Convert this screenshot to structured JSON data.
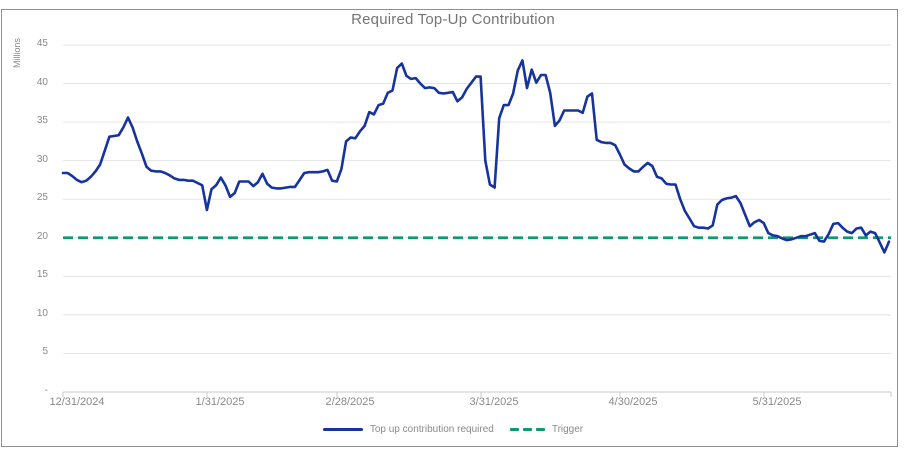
{
  "title": "Required Top-Up Contribution",
  "y_axis": {
    "label": "Millions",
    "ticks": [
      "45",
      "40",
      "35",
      "30",
      "25",
      "20",
      "15",
      "10",
      "5",
      "-"
    ]
  },
  "x_axis": {
    "ticks": [
      "12/31/2024",
      "1/31/2025",
      "2/28/2025",
      "3/31/2025",
      "4/30/2025",
      "5/31/2025"
    ]
  },
  "legend": {
    "items": [
      {
        "label": "Top up contribution required"
      },
      {
        "label": "Trigger"
      }
    ]
  },
  "colors": {
    "series_blue": "#16339E",
    "trigger_green": "#0B9B72",
    "grid": "#E5E5E5",
    "axis": "#C9C9C9",
    "tick_text": "#8A8A8A",
    "title_text": "#757575"
  },
  "chart_data": {
    "type": "line",
    "title": "Required Top-Up Contribution",
    "xlabel": "",
    "ylabel": "Millions",
    "ylim": [
      0,
      45
    ],
    "y_tick_step": 5,
    "grid": true,
    "legend_position": "bottom",
    "x_tick_labels": [
      "12/31/2024",
      "1/31/2025",
      "2/28/2025",
      "3/31/2025",
      "4/30/2025",
      "5/31/2025"
    ],
    "x_unit": "daily points from 12/31/2024",
    "series": [
      {
        "name": "Top up contribution required",
        "color": "#16339E",
        "style": "solid",
        "values": [
          28.4,
          28.4,
          28.0,
          27.5,
          27.2,
          27.4,
          27.9,
          28.6,
          29.5,
          31.3,
          33.1,
          33.2,
          33.3,
          34.3,
          35.6,
          34.3,
          32.5,
          30.9,
          29.2,
          28.7,
          28.6,
          28.6,
          28.4,
          28.1,
          27.7,
          27.5,
          27.5,
          27.4,
          27.4,
          27.1,
          26.8,
          23.6,
          26.3,
          26.8,
          27.8,
          26.8,
          25.3,
          25.8,
          27.3,
          27.3,
          27.3,
          26.7,
          27.2,
          28.3,
          27.0,
          26.5,
          26.4,
          26.4,
          26.5,
          26.6,
          26.6,
          27.5,
          28.4,
          28.5,
          28.5,
          28.5,
          28.6,
          28.8,
          27.4,
          27.3,
          28.9,
          32.5,
          33.0,
          32.9,
          33.8,
          34.5,
          36.3,
          36.0,
          37.2,
          37.4,
          38.8,
          39.1,
          42.0,
          42.6,
          41.0,
          40.6,
          40.7,
          40.0,
          39.4,
          39.5,
          39.4,
          38.8,
          38.7,
          38.8,
          38.9,
          37.7,
          38.2,
          39.3,
          40.1,
          40.9,
          40.9,
          30.0,
          26.9,
          26.5,
          35.5,
          37.2,
          37.2,
          38.7,
          41.7,
          43.0,
          39.4,
          41.8,
          40.1,
          41.1,
          41.1,
          38.8,
          34.5,
          35.2,
          36.5,
          36.5,
          36.5,
          36.5,
          36.2,
          38.3,
          38.7,
          32.7,
          32.4,
          32.3,
          32.3,
          32.0,
          30.8,
          29.5,
          29.0,
          28.6,
          28.6,
          29.2,
          29.7,
          29.3,
          27.9,
          27.7,
          27.0,
          26.9,
          26.9,
          25.0,
          23.5,
          22.5,
          21.5,
          21.3,
          21.3,
          21.2,
          21.6,
          24.3,
          24.9,
          25.1,
          25.2,
          25.4,
          24.5,
          23.0,
          21.5,
          22.0,
          22.3,
          21.9,
          20.6,
          20.3,
          20.2,
          19.9,
          19.7,
          19.8,
          20.0,
          20.2,
          20.2,
          20.4,
          20.6,
          19.6,
          19.5,
          20.5,
          21.8,
          21.9,
          21.3,
          20.8,
          20.6,
          21.2,
          21.3,
          20.3,
          20.8,
          20.6,
          19.4,
          18.1,
          19.5
        ]
      },
      {
        "name": "Trigger",
        "color": "#0B9B72",
        "style": "dashed",
        "value": 20
      }
    ]
  }
}
